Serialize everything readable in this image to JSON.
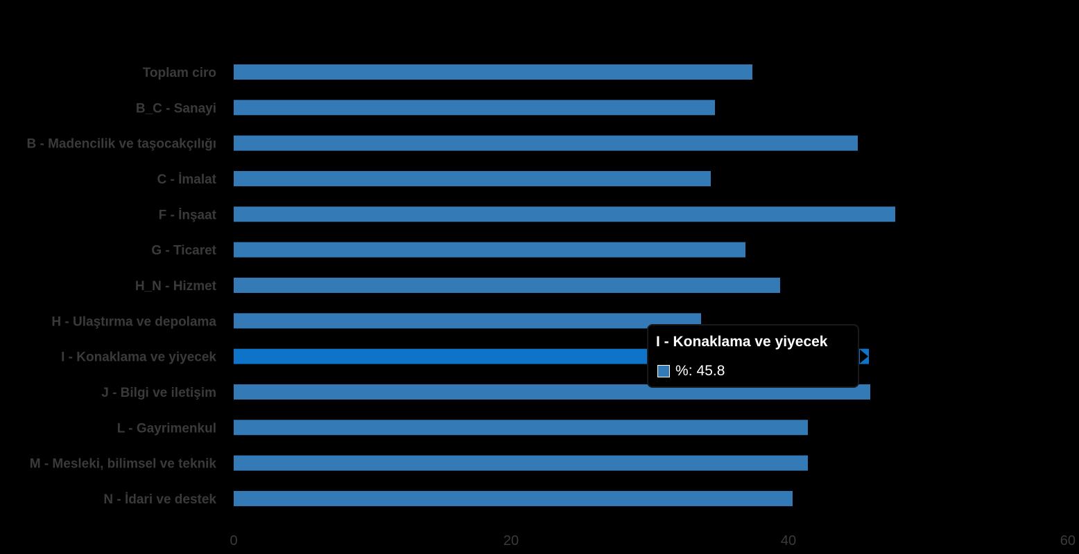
{
  "chart_data": {
    "type": "bar",
    "orientation": "horizontal",
    "categories": [
      "Toplam ciro",
      "B_C - Sanayi",
      "B - Madencilik ve taşocakçılığı",
      "C - İmalat",
      "F - İnşaat",
      "G - Ticaret",
      "H_N - Hizmet",
      "H - Ulaştırma ve depolama",
      "I - Konaklama ve yiyecek",
      "J - Bilgi ve iletişim",
      "L - Gayrimenkul",
      "M - Mesleki, bilimsel ve teknik",
      "N - İdari ve destek"
    ],
    "series": [
      {
        "values": [
          37.4,
          34.7,
          45.0,
          34.4,
          47.7,
          36.9,
          39.4,
          33.7,
          45.8,
          45.9,
          41.4,
          41.4,
          40.3
        ]
      }
    ],
    "xlim": [
      0,
      60
    ],
    "xticks": [
      "0",
      "20",
      "40",
      "60"
    ],
    "grid": false,
    "legend": "none",
    "highlighted_category": "I - Konaklama ve yiyecek",
    "colors": {
      "background": "#000000",
      "bar": "#337ab7",
      "bar_highlight": "#0f74c9",
      "label": "#3a3a3a"
    }
  },
  "tooltip": {
    "title": "I - Konaklama ve yiyecek",
    "series_label": "%",
    "value": "45.8"
  }
}
